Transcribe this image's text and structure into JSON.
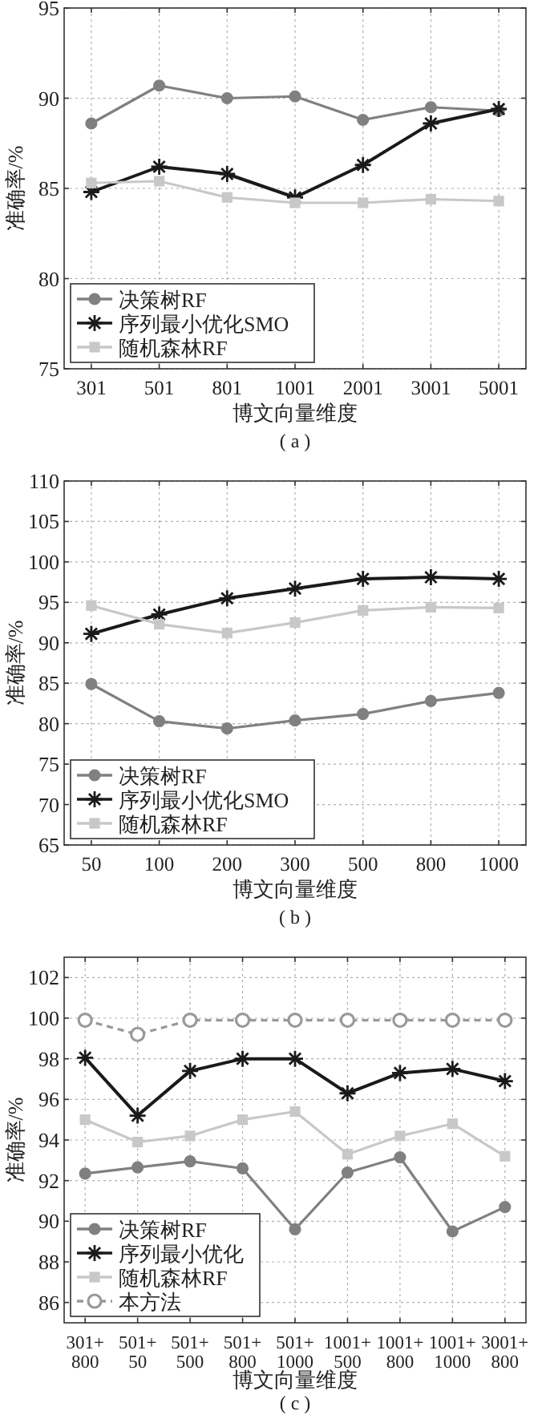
{
  "chart_data": [
    {
      "type": "line",
      "xlabel": "博文向量维度",
      "ylabel": "准确率/%",
      "annotations": [
        "( a )"
      ],
      "categories": [
        "301",
        "501",
        "801",
        "1001",
        "2001",
        "3001",
        "5001"
      ],
      "ylim": [
        75,
        95
      ],
      "yticks": [
        75,
        80,
        85,
        90,
        95
      ],
      "grid": true,
      "legend": "bottom left",
      "line_style": "solid",
      "series": [
        {
          "name": "决策树RF",
          "color": "#808080",
          "marker": "circle",
          "values": [
            88.6,
            90.7,
            90.0,
            90.1,
            88.8,
            89.5,
            89.3
          ]
        },
        {
          "name": "序列最小优化SMO",
          "color": "#1a1a1a",
          "marker": "cross",
          "values": [
            84.8,
            86.2,
            85.8,
            84.5,
            86.3,
            88.6,
            89.4
          ]
        },
        {
          "name": "随机森林RF",
          "color": "#c8c8c8",
          "marker": "square",
          "values": [
            85.3,
            85.4,
            84.5,
            84.2,
            84.2,
            84.4,
            84.3
          ]
        }
      ]
    },
    {
      "type": "line",
      "xlabel": "博文向量维度",
      "ylabel": "准确率/%",
      "annotations": [
        "( b )"
      ],
      "categories": [
        "50",
        "100",
        "200",
        "300",
        "500",
        "800",
        "1000"
      ],
      "ylim": [
        65,
        110
      ],
      "yticks": [
        65,
        70,
        75,
        80,
        85,
        90,
        95,
        100,
        105,
        110
      ],
      "grid": true,
      "legend": "bottom left",
      "line_style": "solid",
      "series": [
        {
          "name": "决策树RF",
          "color": "#808080",
          "marker": "circle",
          "values": [
            84.9,
            80.3,
            79.4,
            80.4,
            81.2,
            82.8,
            83.8
          ]
        },
        {
          "name": "序列最小优化SMO",
          "color": "#1a1a1a",
          "marker": "cross",
          "values": [
            91.1,
            93.5,
            95.5,
            96.7,
            97.9,
            98.1,
            97.9
          ]
        },
        {
          "name": "随机森林RF",
          "color": "#c8c8c8",
          "marker": "square",
          "values": [
            94.6,
            92.3,
            91.2,
            92.5,
            94.0,
            94.4,
            94.3
          ]
        }
      ]
    },
    {
      "type": "line",
      "xlabel": "博文向量维度",
      "ylabel": "准确率/%",
      "annotations": [
        "( c )"
      ],
      "categories": [
        "301+\n800",
        "501+\n50",
        "501+\n500",
        "501+\n800",
        "501+\n1000",
        "1001+\n500",
        "1001+\n800",
        "1001+\n1000",
        "3001+\n800"
      ],
      "ylim": [
        85,
        103
      ],
      "yticks": [
        86,
        88,
        90,
        92,
        94,
        96,
        98,
        100,
        102
      ],
      "grid": true,
      "legend": "bottom left",
      "series": [
        {
          "name": "决策树RF",
          "color": "#808080",
          "marker": "circle",
          "line_style": "solid",
          "values": [
            92.35,
            92.65,
            92.95,
            92.6,
            89.6,
            92.4,
            93.15,
            89.5,
            90.7
          ]
        },
        {
          "name": "序列最小优化",
          "color": "#1a1a1a",
          "marker": "cross",
          "line_style": "solid",
          "values": [
            98.05,
            95.2,
            97.4,
            98.0,
            98.0,
            96.3,
            97.3,
            97.5,
            96.9
          ]
        },
        {
          "name": "随机森林RF",
          "color": "#c8c8c8",
          "marker": "square",
          "line_style": "solid",
          "values": [
            95.0,
            93.9,
            94.2,
            95.0,
            95.4,
            93.3,
            94.2,
            94.8,
            93.2
          ]
        },
        {
          "name": "本方法",
          "color": "#999999",
          "marker": "hollow circle",
          "line_style": "dashed",
          "values": [
            99.9,
            99.2,
            99.9,
            99.9,
            99.9,
            99.9,
            99.9,
            99.9,
            99.9
          ]
        }
      ]
    }
  ]
}
